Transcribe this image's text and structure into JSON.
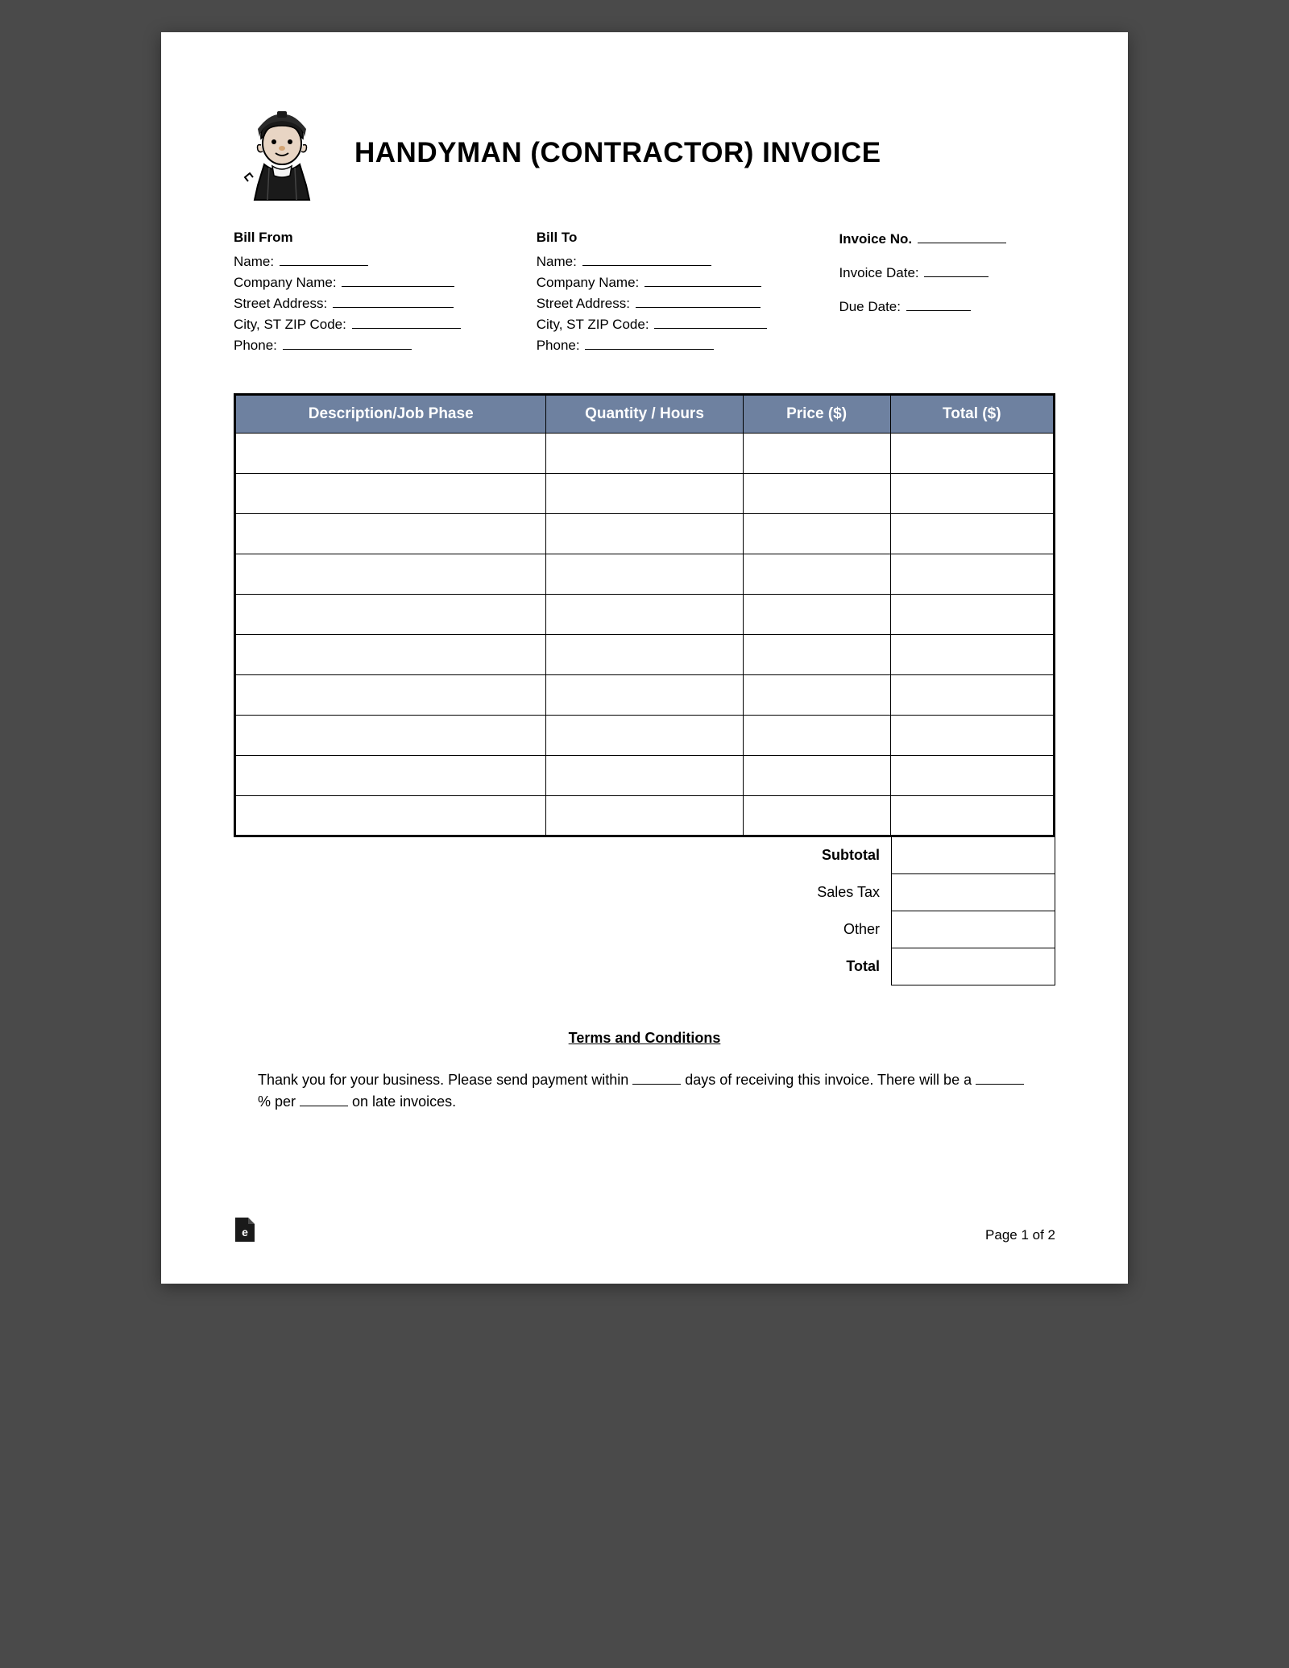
{
  "title": "HANDYMAN (CONTRACTOR) INVOICE",
  "billFrom": {
    "header": "Bill From",
    "fields": [
      {
        "label": "Name:",
        "blankWidth": 110
      },
      {
        "label": "Company Name:",
        "blankWidth": 140
      },
      {
        "label": "Street Address:",
        "blankWidth": 150
      },
      {
        "label": "City, ST ZIP Code:",
        "blankWidth": 135
      },
      {
        "label": "Phone:",
        "blankWidth": 160
      }
    ]
  },
  "billTo": {
    "header": "Bill To",
    "fields": [
      {
        "label": "Name:",
        "blankWidth": 160
      },
      {
        "label": "Company Name:",
        "blankWidth": 145
      },
      {
        "label": "Street Address:",
        "blankWidth": 155
      },
      {
        "label": "City, ST ZIP Code:",
        "blankWidth": 140
      },
      {
        "label": "Phone:",
        "blankWidth": 160
      }
    ]
  },
  "meta": {
    "fields": [
      {
        "label": "Invoice No.",
        "blankWidth": 110,
        "bold": true
      },
      {
        "label": "Invoice Date:",
        "blankWidth": 80,
        "bold": false
      },
      {
        "label": "Due Date:",
        "blankWidth": 80,
        "bold": false
      }
    ]
  },
  "table": {
    "headers": [
      "Description/Job Phase",
      "Quantity / Hours",
      "Price ($)",
      "Total ($)"
    ],
    "rowCount": 10,
    "headerBg": "#6e81a0",
    "headerColor": "#ffffff"
  },
  "totals": [
    {
      "label": "Subtotal",
      "bold": true
    },
    {
      "label": "Sales Tax",
      "bold": false
    },
    {
      "label": "Other",
      "bold": false
    },
    {
      "label": "Total",
      "bold": true
    }
  ],
  "terms": {
    "title": "Terms and Conditions",
    "text1": "Thank you for your business. Please send payment within ",
    "text2": " days of receiving this invoice. There will be a ",
    "text3": "% per ",
    "text4": " on late invoices."
  },
  "footer": {
    "pageText": "Page 1 of 2"
  }
}
